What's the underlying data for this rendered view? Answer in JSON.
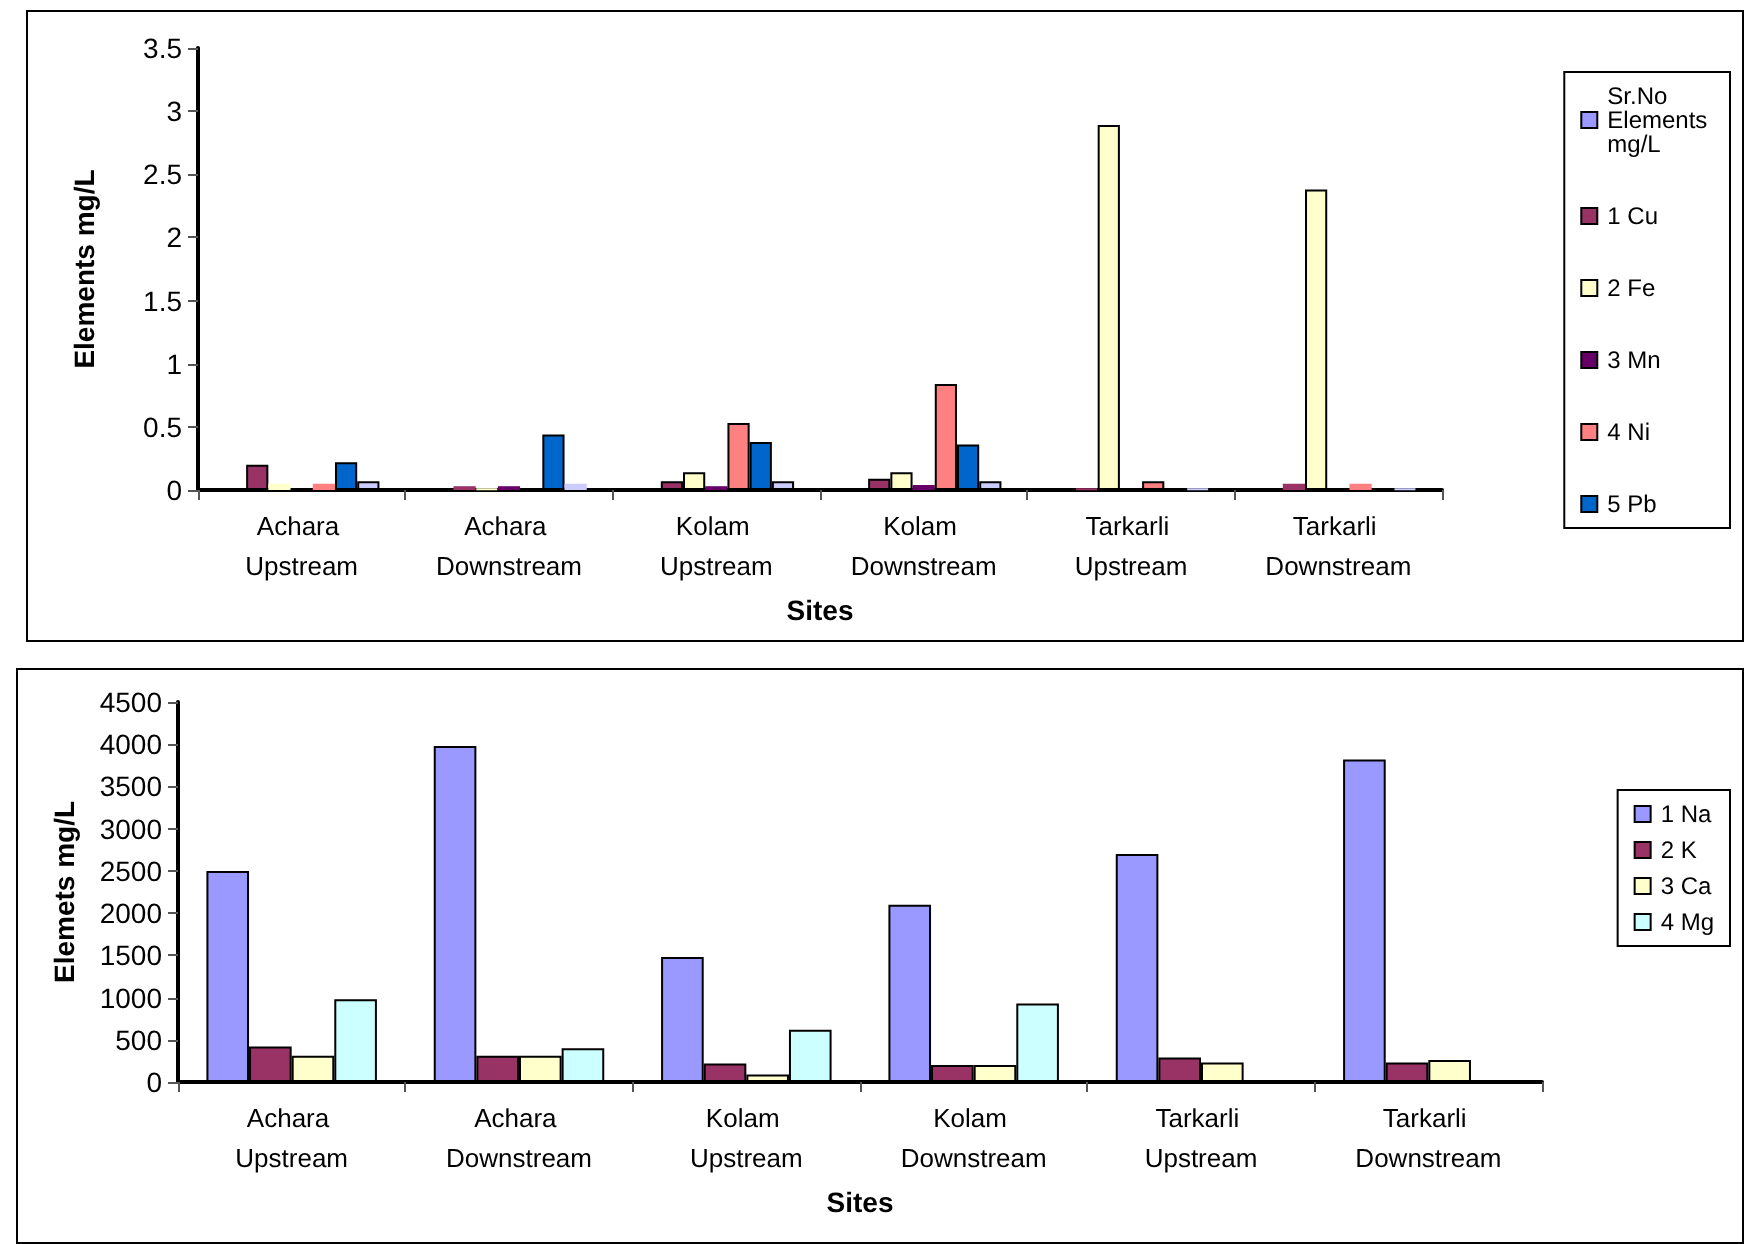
{
  "chart_data": [
    {
      "type": "bar",
      "xlabel": "Sites",
      "ylabel": "Elements mg/L",
      "categories": [
        "Achara Upstream",
        "Achara Downstream",
        "Kolam Upstream",
        "Kolam Downstream",
        "Tarkarli Upstream",
        "Tarkarli Downstream"
      ],
      "series": [
        {
          "name": "Sr.No Elements mg/L",
          "color": "#9999ff",
          "values": [
            0,
            0,
            0,
            0,
            0,
            0
          ]
        },
        {
          "name": "1 Cu",
          "color": "#993366",
          "values": [
            0.2,
            0.03,
            0.07,
            0.09,
            0.01,
            0.05
          ]
        },
        {
          "name": "2 Fe",
          "color": "#ffffcc",
          "values": [
            0.05,
            0.01,
            0.14,
            0.14,
            2.89,
            2.38
          ]
        },
        {
          "name": "3 Mn",
          "color": "#660066",
          "values": [
            0,
            0.03,
            0.03,
            0.04,
            0,
            0
          ]
        },
        {
          "name": "4 Ni",
          "color": "#ff8080",
          "values": [
            0.05,
            0,
            0.53,
            0.84,
            0.07,
            0.05
          ]
        },
        {
          "name": "5 Pb",
          "color": "#0066cc",
          "values": [
            0.22,
            0.44,
            0.38,
            0.36,
            0,
            0
          ]
        },
        {
          "color": "#ccccff",
          "values": [
            0.07,
            0.05,
            0.07,
            0.07,
            0.01,
            0.01
          ]
        }
      ],
      "ylim": [
        0,
        3.5
      ],
      "yticks": [
        0,
        0.5,
        1,
        1.5,
        2,
        2.5,
        3,
        3.5
      ],
      "grid": false,
      "legend": "right"
    },
    {
      "type": "bar",
      "xlabel": "Sites",
      "ylabel": "Elemets mg/L",
      "categories": [
        "Achara Upstream",
        "Achara Downstream",
        "Kolam Upstream",
        "Kolam Downstream",
        "Tarkarli Upstream",
        "Tarkarli Downstream"
      ],
      "series": [
        {
          "name": "1 Na",
          "color": "#9999ff",
          "values": [
            2500,
            3980,
            1480,
            2100,
            2700,
            3820
          ]
        },
        {
          "name": "2 K",
          "color": "#993366",
          "values": [
            420,
            310,
            220,
            200,
            290,
            230
          ]
        },
        {
          "name": "3 Ca",
          "color": "#ffffcc",
          "values": [
            310,
            310,
            90,
            200,
            230,
            260
          ]
        },
        {
          "name": "4 Mg",
          "color": "#ccffff",
          "values": [
            980,
            400,
            620,
            930,
            0,
            0
          ]
        }
      ],
      "ylim": [
        0,
        4500
      ],
      "yticks": [
        0,
        500,
        1000,
        1500,
        2000,
        2500,
        3000,
        3500,
        4000,
        4500
      ],
      "grid": false,
      "legend": "right"
    }
  ]
}
